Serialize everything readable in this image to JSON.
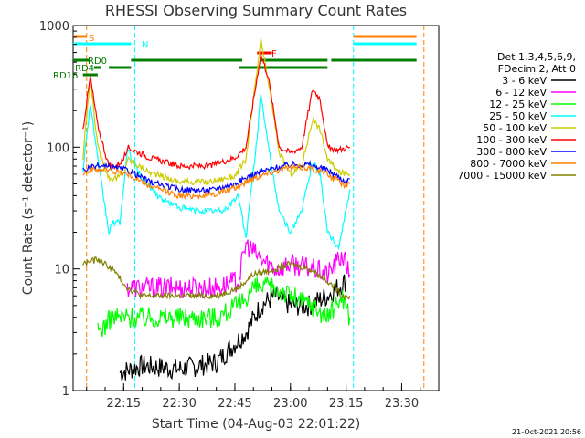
{
  "chart_data": {
    "type": "line",
    "title": "RHESSI Observing Summary Count Rates",
    "xlabel": "Start Time (04-Aug-03 22:01:22)",
    "ylabel": "Count Rate (s⁻¹ detector⁻¹)",
    "yscale": "log",
    "ylim": [
      1,
      1000
    ],
    "xlim": [
      "22:01:22",
      "23:40:00"
    ],
    "x_ticks": [
      "22:15",
      "22:30",
      "22:45",
      "23:00",
      "23:15",
      "23:30"
    ],
    "y_ticks": [
      "1",
      "10",
      "100",
      "1000"
    ],
    "timestamp": "21-Oct-2021 20:56",
    "legend_header": [
      "Det 1,3,4,5,6,9,",
      "FDecim 2, Att 0"
    ],
    "grid": false,
    "legend_position": "right",
    "series": [
      {
        "name": "3 - 6 keV",
        "color": "#000000",
        "points": [
          [
            "22:14",
            1.4
          ],
          [
            "22:20",
            1.6
          ],
          [
            "22:30",
            1.5
          ],
          [
            "22:40",
            1.7
          ],
          [
            "22:48",
            3
          ],
          [
            "22:52",
            5
          ],
          [
            "22:56",
            6
          ],
          [
            "23:00",
            5
          ],
          [
            "23:05",
            5
          ],
          [
            "23:10",
            6
          ],
          [
            "23:15",
            8
          ]
        ]
      },
      {
        "name": "6 - 12 keV",
        "color": "#ff00ff",
        "points": [
          [
            "22:16",
            7
          ],
          [
            "22:22",
            7
          ],
          [
            "22:30",
            7
          ],
          [
            "22:40",
            7
          ],
          [
            "22:46",
            8
          ],
          [
            "22:48",
            16
          ],
          [
            "22:52",
            12
          ],
          [
            "22:56",
            10
          ],
          [
            "23:00",
            11
          ],
          [
            "23:06",
            10
          ],
          [
            "23:10",
            9
          ],
          [
            "23:14",
            13
          ],
          [
            "23:16",
            9
          ]
        ]
      },
      {
        "name": "12 - 25 keV",
        "color": "#00ff00",
        "points": [
          [
            "22:08",
            3
          ],
          [
            "22:12",
            4
          ],
          [
            "22:16",
            4
          ],
          [
            "22:22",
            4
          ],
          [
            "22:30",
            4
          ],
          [
            "22:40",
            4
          ],
          [
            "22:46",
            5
          ],
          [
            "22:50",
            7
          ],
          [
            "22:56",
            7
          ],
          [
            "23:00",
            6
          ],
          [
            "23:06",
            5
          ],
          [
            "23:10",
            4
          ],
          [
            "23:14",
            6
          ],
          [
            "23:16",
            4
          ]
        ]
      },
      {
        "name": "25 - 50 keV",
        "color": "#00ffff",
        "points": [
          [
            "22:04",
            65
          ],
          [
            "22:06",
            230
          ],
          [
            "22:08",
            80
          ],
          [
            "22:11",
            20
          ],
          [
            "22:12",
            24
          ],
          [
            "22:14",
            24
          ],
          [
            "22:16",
            95
          ],
          [
            "22:20",
            55
          ],
          [
            "22:25",
            38
          ],
          [
            "22:30",
            32
          ],
          [
            "22:35",
            30
          ],
          [
            "22:42",
            30
          ],
          [
            "22:46",
            40
          ],
          [
            "22:48",
            18
          ],
          [
            "22:51",
            120
          ],
          [
            "22:52",
            285
          ],
          [
            "22:54",
            100
          ],
          [
            "22:57",
            30
          ],
          [
            "23:00",
            20
          ],
          [
            "23:03",
            30
          ],
          [
            "23:06",
            75
          ],
          [
            "23:08",
            60
          ],
          [
            "23:10",
            20
          ],
          [
            "23:13",
            15
          ],
          [
            "23:16",
            45
          ]
        ]
      },
      {
        "name": "50 - 100 keV",
        "color": "#cccc00",
        "points": [
          [
            "22:04",
            80
          ],
          [
            "22:06",
            380
          ],
          [
            "22:08",
            100
          ],
          [
            "22:11",
            56
          ],
          [
            "22:13",
            56
          ],
          [
            "22:15",
            60
          ],
          [
            "22:16",
            80
          ],
          [
            "22:22",
            62
          ],
          [
            "22:30",
            52
          ],
          [
            "22:38",
            52
          ],
          [
            "22:45",
            58
          ],
          [
            "22:48",
            80
          ],
          [
            "22:52",
            750
          ],
          [
            "22:54",
            350
          ],
          [
            "22:57",
            90
          ],
          [
            "23:00",
            60
          ],
          [
            "23:03",
            70
          ],
          [
            "23:06",
            170
          ],
          [
            "23:08",
            140
          ],
          [
            "23:10",
            80
          ],
          [
            "23:13",
            62
          ],
          [
            "23:16",
            60
          ]
        ]
      },
      {
        "name": "100 - 300 keV",
        "color": "#ff0000",
        "points": [
          [
            "22:04",
            140
          ],
          [
            "22:06",
            380
          ],
          [
            "22:08",
            150
          ],
          [
            "22:11",
            70
          ],
          [
            "22:13",
            70
          ],
          [
            "22:15",
            80
          ],
          [
            "22:16",
            100
          ],
          [
            "22:22",
            82
          ],
          [
            "22:30",
            70
          ],
          [
            "22:38",
            70
          ],
          [
            "22:45",
            82
          ],
          [
            "22:48",
            100
          ],
          [
            "22:52",
            580
          ],
          [
            "22:54",
            380
          ],
          [
            "22:57",
            100
          ],
          [
            "23:00",
            90
          ],
          [
            "23:03",
            100
          ],
          [
            "23:06",
            300
          ],
          [
            "23:08",
            250
          ],
          [
            "23:10",
            100
          ],
          [
            "23:13",
            95
          ],
          [
            "23:16",
            100
          ]
        ]
      },
      {
        "name": "300 - 800 keV",
        "color": "#0000ff",
        "points": [
          [
            "22:04",
            65
          ],
          [
            "22:08",
            70
          ],
          [
            "22:12",
            68
          ],
          [
            "22:16",
            65
          ],
          [
            "22:22",
            52
          ],
          [
            "22:30",
            45
          ],
          [
            "22:38",
            44
          ],
          [
            "22:45",
            50
          ],
          [
            "22:50",
            60
          ],
          [
            "22:56",
            68
          ],
          [
            "23:00",
            72
          ],
          [
            "23:05",
            72
          ],
          [
            "23:10",
            65
          ],
          [
            "23:15",
            52
          ],
          [
            "23:16",
            55
          ]
        ]
      },
      {
        "name": "800 - 7000 keV",
        "color": "#ff8000",
        "points": [
          [
            "22:04",
            62
          ],
          [
            "22:08",
            66
          ],
          [
            "22:12",
            64
          ],
          [
            "22:16",
            60
          ],
          [
            "22:22",
            48
          ],
          [
            "22:30",
            40
          ],
          [
            "22:38",
            40
          ],
          [
            "22:45",
            46
          ],
          [
            "22:50",
            56
          ],
          [
            "22:56",
            64
          ],
          [
            "23:00",
            68
          ],
          [
            "23:05",
            68
          ],
          [
            "23:10",
            60
          ],
          [
            "23:15",
            48
          ],
          [
            "23:16",
            50
          ]
        ]
      },
      {
        "name": "7000 - 15000 keV",
        "color": "#808000",
        "points": [
          [
            "22:04",
            11
          ],
          [
            "22:08",
            12
          ],
          [
            "22:12",
            10
          ],
          [
            "22:16",
            7
          ],
          [
            "22:20",
            6
          ],
          [
            "22:30",
            6
          ],
          [
            "22:40",
            6
          ],
          [
            "22:46",
            7
          ],
          [
            "22:50",
            9
          ],
          [
            "22:56",
            10
          ],
          [
            "23:00",
            11
          ],
          [
            "23:05",
            10
          ],
          [
            "23:10",
            8
          ],
          [
            "23:14",
            6
          ],
          [
            "23:16",
            6
          ]
        ]
      }
    ],
    "annotations": [
      {
        "text": "S",
        "color": "#ff8000"
      },
      {
        "text": "N",
        "color": "#00ffff"
      },
      {
        "text": "RD0",
        "color": "#007f00"
      },
      {
        "text": "RD4",
        "color": "#007f00"
      },
      {
        "text": "RD16",
        "color": "#007f00"
      },
      {
        "text": "F",
        "color": "#ff0000"
      }
    ],
    "flag_segments": [
      {
        "name": "S",
        "color": "#ff8000",
        "ranges": [
          [
            "22:01:22",
            "22:05"
          ],
          [
            "23:17",
            "23:34"
          ]
        ]
      },
      {
        "name": "N",
        "color": "#00ffff",
        "ranges": [
          [
            "22:01:22",
            "22:17"
          ],
          [
            "23:17",
            "23:34"
          ]
        ]
      },
      {
        "name": "RD0",
        "color": "#007f00",
        "ranges": [
          [
            "22:01:22",
            "22:06"
          ],
          [
            "22:17",
            "22:47"
          ],
          [
            "22:52",
            "23:10"
          ],
          [
            "23:11",
            "23:34"
          ]
        ]
      },
      {
        "name": "RD4",
        "color": "#007f00",
        "ranges": [
          [
            "22:07",
            "22:09"
          ],
          [
            "22:11",
            "22:17"
          ],
          [
            "22:46",
            "23:10"
          ]
        ]
      },
      {
        "name": "RD16",
        "color": "#007f00",
        "ranges": [
          [
            "22:04",
            "22:08"
          ]
        ]
      },
      {
        "name": "F",
        "color": "#ff0000",
        "ranges": [
          [
            "22:51",
            "22:55"
          ]
        ]
      }
    ],
    "vertical_markers": [
      {
        "time": "22:05",
        "color": "#ff8000"
      },
      {
        "time": "22:18",
        "color": "#00ffff"
      },
      {
        "time": "23:17",
        "color": "#00ffff"
      },
      {
        "time": "23:36",
        "color": "#ff8000"
      }
    ]
  }
}
